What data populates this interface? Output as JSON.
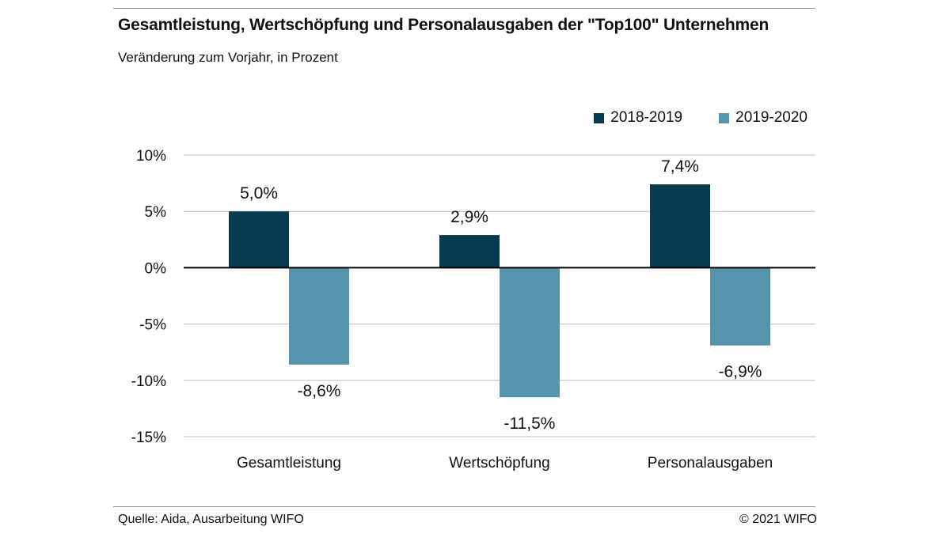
{
  "header": {
    "title": "Gesamtleistung, Wertschöpfung und Personalausgaben der \"Top100\" Unternehmen",
    "subtitle": "Veränderung zum Vorjahr, in Prozent"
  },
  "footer": {
    "source": "Quelle: Aida, Ausarbeitung WIFO",
    "copyright": "© 2021 WIFO"
  },
  "colors": {
    "series_2018_2019": "#073b52",
    "series_2019_2020": "#5694ad",
    "grid": "#bdbdbd",
    "zero_line": "#000000"
  },
  "chart_data": {
    "type": "bar",
    "title": "Gesamtleistung, Wertschöpfung und Personalausgaben der \"Top100\" Unternehmen",
    "subtitle": "Veränderung zum Vorjahr, in Prozent",
    "categories": [
      "Gesamtleistung",
      "Wertschöpfung",
      "Personalausgaben"
    ],
    "series": [
      {
        "name": "2018-2019",
        "values": [
          5.0,
          2.9,
          7.4
        ],
        "labels": [
          "5,0%",
          "2,9%",
          "7,4%"
        ]
      },
      {
        "name": "2019-2020",
        "values": [
          -8.6,
          -11.5,
          -6.9
        ],
        "labels": [
          "-8,6%",
          "-11,5%",
          "-6,9%"
        ]
      }
    ],
    "ylim": [
      -15,
      10
    ],
    "yticks": [
      10,
      5,
      0,
      -5,
      -10,
      -15
    ],
    "ytick_labels": [
      "10%",
      "5%",
      "0%",
      "-5%",
      "-10%",
      "-15%"
    ],
    "xlabel": "",
    "ylabel": "",
    "grid": true,
    "legend_position": "top-right"
  }
}
